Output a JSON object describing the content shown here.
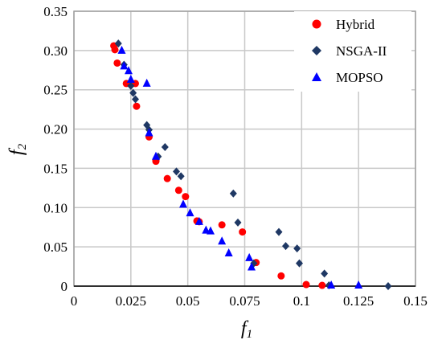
{
  "chart_data": {
    "type": "scatter",
    "xlabel": "f",
    "xlabel_sub": "1",
    "ylabel": "f",
    "ylabel_sub": "2",
    "xlim": [
      0,
      0.15
    ],
    "ylim": [
      0,
      0.35
    ],
    "xticks": [
      0,
      0.025,
      0.05,
      0.075,
      0.1,
      0.125,
      0.15
    ],
    "xtick_labels": [
      "0",
      "0.025",
      "0.05",
      "0.075",
      "0.1",
      "0.125",
      "0.15"
    ],
    "yticks": [
      0,
      0.05,
      0.1,
      0.15,
      0.2,
      0.25,
      0.3,
      0.35
    ],
    "ytick_labels": [
      "0",
      "0.05",
      "0.10",
      "0.15",
      "0.20",
      "0.25",
      "0.30",
      "0.35"
    ],
    "grid": true,
    "legend_position": "top-right",
    "series": [
      {
        "name": "Hybrid",
        "marker": "circle",
        "color": "#ff0000",
        "points": [
          [
            0.0175,
            0.306
          ],
          [
            0.018,
            0.301
          ],
          [
            0.019,
            0.284
          ],
          [
            0.023,
            0.258
          ],
          [
            0.027,
            0.258
          ],
          [
            0.0275,
            0.229
          ],
          [
            0.033,
            0.19
          ],
          [
            0.036,
            0.16
          ],
          [
            0.036,
            0.159
          ],
          [
            0.041,
            0.137
          ],
          [
            0.046,
            0.122
          ],
          [
            0.049,
            0.114
          ],
          [
            0.054,
            0.083
          ],
          [
            0.055,
            0.082
          ],
          [
            0.065,
            0.078
          ],
          [
            0.074,
            0.069
          ],
          [
            0.08,
            0.03
          ],
          [
            0.091,
            0.013
          ],
          [
            0.102,
            0.002
          ],
          [
            0.109,
            0.001
          ]
        ]
      },
      {
        "name": "NSGA-II",
        "marker": "diamond",
        "color": "#1f3864",
        "points": [
          [
            0.0195,
            0.309
          ],
          [
            0.022,
            0.282
          ],
          [
            0.025,
            0.255
          ],
          [
            0.026,
            0.246
          ],
          [
            0.027,
            0.238
          ],
          [
            0.032,
            0.205
          ],
          [
            0.033,
            0.199
          ],
          [
            0.037,
            0.165
          ],
          [
            0.04,
            0.177
          ],
          [
            0.045,
            0.146
          ],
          [
            0.047,
            0.14
          ],
          [
            0.07,
            0.118
          ],
          [
            0.072,
            0.081
          ],
          [
            0.079,
            0.029
          ],
          [
            0.09,
            0.069
          ],
          [
            0.093,
            0.051
          ],
          [
            0.098,
            0.048
          ],
          [
            0.099,
            0.029
          ],
          [
            0.11,
            0.016
          ],
          [
            0.112,
            0.001
          ],
          [
            0.138,
            0.0
          ]
        ]
      },
      {
        "name": "MOPSO",
        "marker": "triangle",
        "color": "#0000ff",
        "points": [
          [
            0.021,
            0.3
          ],
          [
            0.022,
            0.28
          ],
          [
            0.024,
            0.274
          ],
          [
            0.025,
            0.263
          ],
          [
            0.032,
            0.258
          ],
          [
            0.033,
            0.195
          ],
          [
            0.036,
            0.165
          ],
          [
            0.048,
            0.104
          ],
          [
            0.051,
            0.093
          ],
          [
            0.055,
            0.082
          ],
          [
            0.058,
            0.071
          ],
          [
            0.06,
            0.07
          ],
          [
            0.065,
            0.057
          ],
          [
            0.068,
            0.042
          ],
          [
            0.077,
            0.036
          ],
          [
            0.078,
            0.024
          ],
          [
            0.113,
            0.001
          ],
          [
            0.125,
            0.001
          ]
        ]
      }
    ]
  }
}
